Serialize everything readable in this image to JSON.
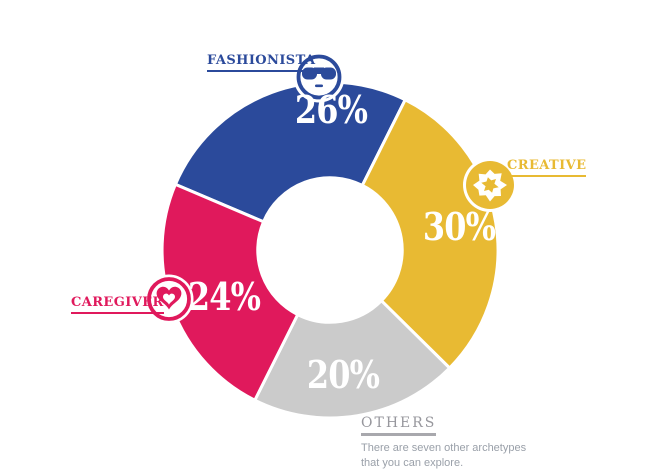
{
  "chart_data": {
    "type": "pie",
    "subtype": "donut",
    "title": "",
    "start_angle_deg": -67,
    "inner_radius_ratio": 0.43,
    "gap_color": "#ffffff",
    "segments": [
      {
        "name": "FASHIONISTA",
        "value": 26,
        "label": "26%",
        "color": "#2b4a9b",
        "icon": "sunglasses-face-icon"
      },
      {
        "name": "CREATIVE",
        "value": 30,
        "label": "30%",
        "color": "#e8ba33",
        "icon": "paint-splatter-icon"
      },
      {
        "name": "OTHERS",
        "value": 20,
        "label": "20%",
        "color": "#cbcbcb",
        "icon": null
      },
      {
        "name": "CAREGIVER",
        "value": 24,
        "label": "24%",
        "color": "#e0195c",
        "icon": "heart-icon"
      }
    ],
    "legend_position": "callouts-around-donut",
    "value_label_color": "#ffffff"
  },
  "others_note": {
    "title": "OTHERS",
    "line1": "There are seven other archetypes",
    "line2": "that you can explore."
  }
}
